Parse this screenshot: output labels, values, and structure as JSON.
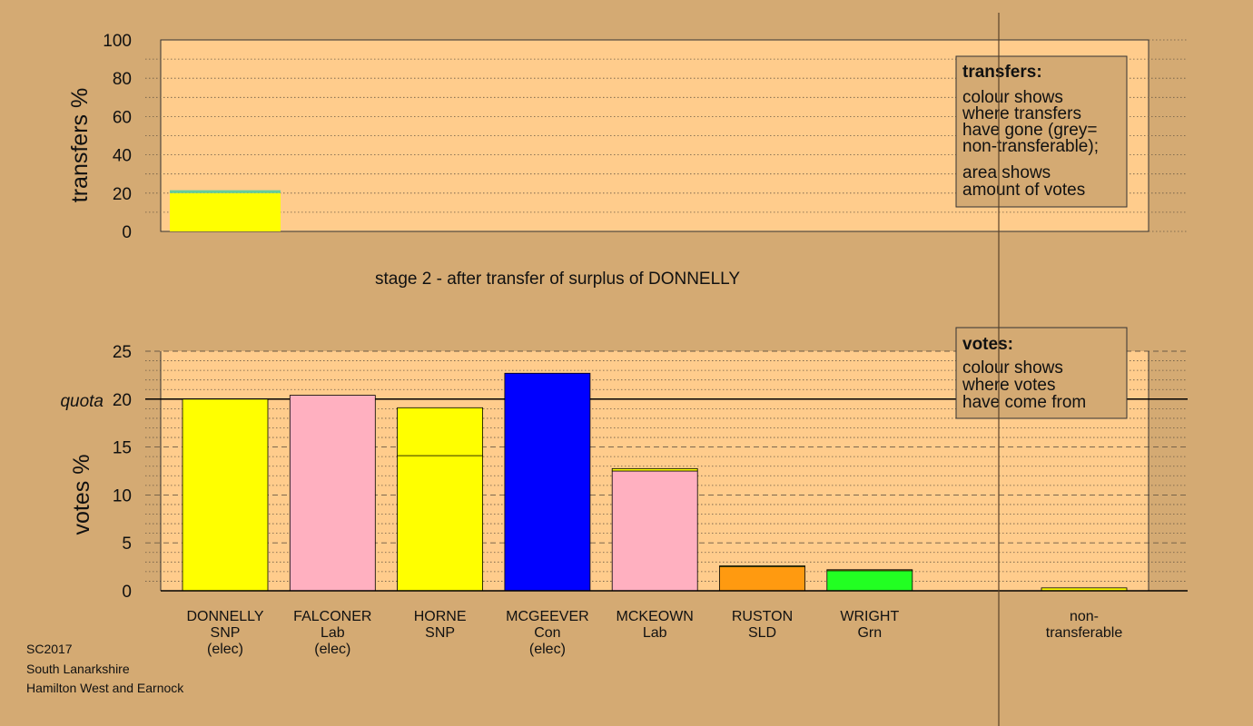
{
  "chart_data": [
    {
      "type": "bar",
      "stacked": true,
      "ylabel": "transfers %",
      "ylim": [
        0,
        100
      ],
      "yticks": [
        0,
        20,
        40,
        60,
        80,
        100
      ],
      "grid": true,
      "bars": [
        {
          "candidate": "DONNELLY",
          "segments": [
            {
              "value": 20.0,
              "color": "#ffff00"
            },
            {
              "value": 1.5,
              "color": "#66cc99"
            }
          ]
        }
      ],
      "legend": {
        "placement": "top-right",
        "title": "transfers:",
        "lines": [
          "colour shows",
          "where transfers",
          "have gone (grey=",
          "non-transferable);",
          "area shows",
          "amount of votes"
        ]
      }
    },
    {
      "type": "bar",
      "stacked": true,
      "title": "stage 2 - after transfer of surplus of DONNELLY",
      "ylabel": "votes %",
      "ylim": [
        0,
        25
      ],
      "yticks": [
        0,
        5,
        10,
        15,
        20,
        25
      ],
      "quota": {
        "value": 20,
        "label": "quota"
      },
      "grid": true,
      "categories": [
        {
          "name": "DONNELLY",
          "party": "SNP",
          "note": "(elec)"
        },
        {
          "name": "FALCONER",
          "party": "Lab",
          "note": "(elec)"
        },
        {
          "name": "HORNE",
          "party": "SNP",
          "note": ""
        },
        {
          "name": "MCGEEVER",
          "party": "Con",
          "note": "(elec)"
        },
        {
          "name": "MCKEOWN",
          "party": "Lab",
          "note": ""
        },
        {
          "name": "RUSTON",
          "party": "SLD",
          "note": ""
        },
        {
          "name": "WRIGHT",
          "party": "Grn",
          "note": ""
        }
      ],
      "bars": [
        {
          "candidate": "DONNELLY",
          "segments": [
            {
              "value": 20.0,
              "color": "#ffff00"
            }
          ]
        },
        {
          "candidate": "FALCONER",
          "segments": [
            {
              "value": 20.4,
              "color": "#ffb0c0"
            }
          ]
        },
        {
          "candidate": "HORNE",
          "segments": [
            {
              "value": 14.1,
              "color": "#ffff00"
            },
            {
              "value": 5.0,
              "color": "#ffff00"
            }
          ]
        },
        {
          "candidate": "MCGEEVER",
          "segments": [
            {
              "value": 22.7,
              "color": "#0000ff"
            }
          ]
        },
        {
          "candidate": "MCKEOWN",
          "segments": [
            {
              "value": 12.5,
              "color": "#ffb0c0"
            },
            {
              "value": 0.25,
              "color": "#ffff00"
            }
          ]
        },
        {
          "candidate": "RUSTON",
          "segments": [
            {
              "value": 2.5,
              "color": "#ff9a10"
            },
            {
              "value": 0.1,
              "color": "#ffff00"
            }
          ]
        },
        {
          "candidate": "WRIGHT",
          "segments": [
            {
              "value": 2.1,
              "color": "#22ff22"
            },
            {
              "value": 0.1,
              "color": "#ffff00"
            }
          ]
        }
      ],
      "nontransferable": {
        "label_lines": [
          "non-",
          "transferable"
        ],
        "value": 0.3,
        "color": "#ffff00"
      },
      "legend": {
        "placement": "top-right",
        "title": "votes:",
        "lines": [
          "colour shows",
          "where votes",
          "have come from"
        ]
      }
    }
  ],
  "footer": {
    "lines": [
      "SC2017",
      "South Lanarkshire",
      "Hamilton West and Earnock"
    ]
  },
  "colors": {
    "background": "#d4aa73",
    "plot_background": "#ffcc8c",
    "legend_background": "#d4aa73"
  }
}
